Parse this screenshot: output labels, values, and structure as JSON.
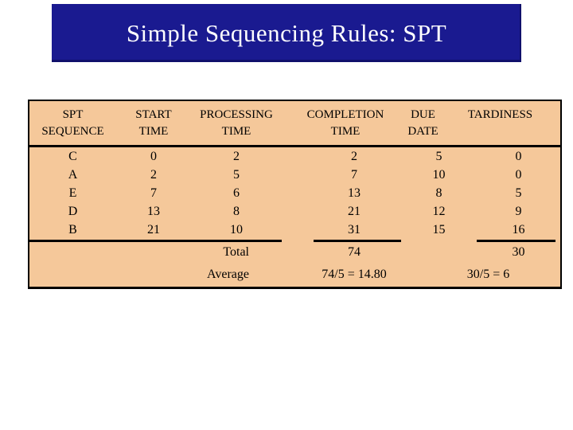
{
  "title": "Simple Sequencing Rules: SPT",
  "colors": {
    "title_bg": "#1a1a90",
    "title_text": "#ffffff",
    "table_bg": "#f5c89a",
    "table_border": "#000000",
    "body_bg": "#ffffff"
  },
  "table": {
    "headers": [
      {
        "line1": "SPT",
        "line2": "SEQUENCE"
      },
      {
        "line1": "START",
        "line2": "TIME"
      },
      {
        "line1": "PROCESSING",
        "line2": "TIME"
      },
      {
        "line1": "COMPLETION",
        "line2": "TIME"
      },
      {
        "line1": "DUE",
        "line2": "DATE"
      },
      {
        "line1": "",
        "line2": "TARDINESS"
      }
    ],
    "rows": [
      {
        "sequence": "C",
        "start_time": "0",
        "processing_time": "2",
        "completion_time": "2",
        "due_date": "5",
        "tardiness": "0"
      },
      {
        "sequence": "A",
        "start_time": "2",
        "processing_time": "5",
        "completion_time": "7",
        "due_date": "10",
        "tardiness": "0"
      },
      {
        "sequence": "E",
        "start_time": "7",
        "processing_time": "6",
        "completion_time": "13",
        "due_date": "8",
        "tardiness": "5"
      },
      {
        "sequence": "D",
        "start_time": "13",
        "processing_time": "8",
        "completion_time": "21",
        "due_date": "12",
        "tardiness": "9"
      },
      {
        "sequence": "B",
        "start_time": "21",
        "processing_time": "10",
        "completion_time": "31",
        "due_date": "15",
        "tardiness": "16"
      }
    ],
    "total": {
      "label": "Total",
      "completion_time": "74",
      "tardiness": "30"
    },
    "average": {
      "label": "Average",
      "completion_time": "74/5 = 14.80",
      "tardiness": "30/5 = 6"
    }
  },
  "chart_data": {
    "type": "table",
    "title": "Simple Sequencing Rules: SPT",
    "columns": [
      "SPT SEQUENCE",
      "START TIME",
      "PROCESSING TIME",
      "COMPLETION TIME",
      "DUE DATE",
      "TARDINESS"
    ],
    "rows": [
      [
        "C",
        0,
        2,
        2,
        5,
        0
      ],
      [
        "A",
        2,
        5,
        7,
        10,
        0
      ],
      [
        "E",
        7,
        6,
        13,
        8,
        5
      ],
      [
        "D",
        13,
        8,
        21,
        12,
        9
      ],
      [
        "B",
        21,
        10,
        31,
        15,
        16
      ]
    ],
    "totals": {
      "completion_time": 74,
      "tardiness": 30
    },
    "averages": {
      "completion_time": 14.8,
      "tardiness": 6
    }
  }
}
